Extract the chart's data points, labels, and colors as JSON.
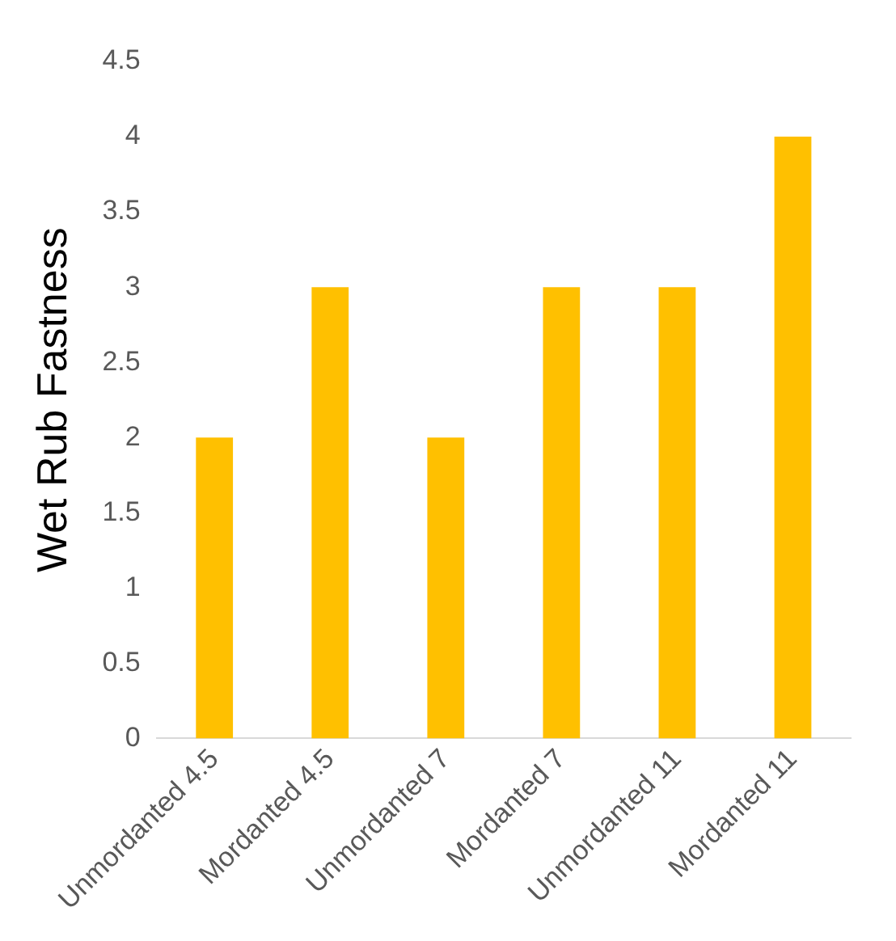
{
  "chart_data": {
    "type": "bar",
    "ylabel": "Wet Rub Fastness",
    "categories": [
      "Unmordanted 4.5",
      "Mordanted 4.5",
      "Unmordanted 7",
      "Mordanted 7",
      "Unmordanted 11",
      "Mordanted 11"
    ],
    "values": [
      2,
      3,
      2,
      3,
      3,
      4
    ],
    "color": "#ffc000",
    "ylim": [
      0,
      4.5
    ],
    "yticks": [
      0,
      0.5,
      1,
      1.5,
      2,
      2.5,
      3,
      3.5,
      4,
      4.5
    ],
    "legend": false
  }
}
